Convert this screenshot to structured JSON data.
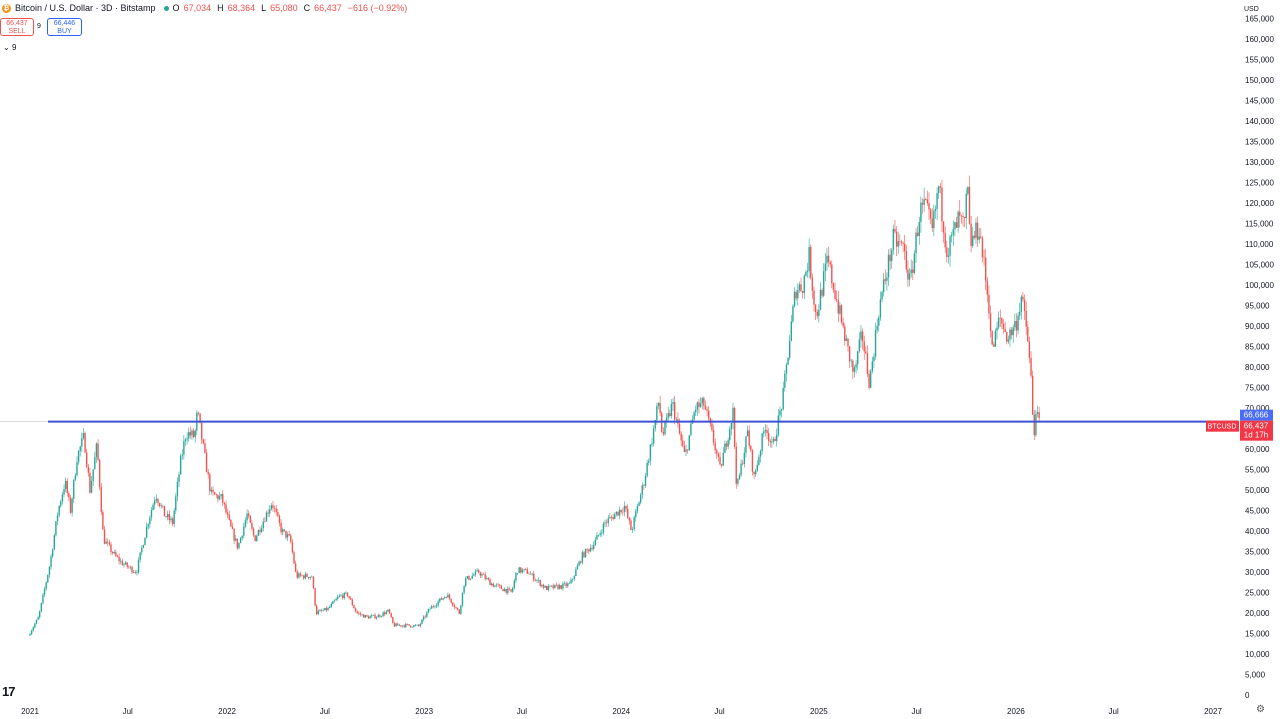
{
  "header": {
    "coin_icon": "bitcoin-icon",
    "title": "Bitcoin / U.S. Dollar · 3D · Bitstamp",
    "ohlc": [
      {
        "k": "O",
        "v": "67,034"
      },
      {
        "k": "H",
        "v": "68,364"
      },
      {
        "k": "L",
        "v": "65,080"
      },
      {
        "k": "C",
        "v": "66,437"
      }
    ],
    "change": "−616 (−0.92%)"
  },
  "trade": {
    "sell_price": "66,437",
    "sell_label": "SELL",
    "spread": "9",
    "buy_price": "66,446",
    "buy_label": "BUY"
  },
  "indicators_toggle": "9",
  "currency": "USD",
  "colors": {
    "up": "#26a69a",
    "down": "#ef5350",
    "hline": "#3f51d9",
    "current": "#f23645",
    "hline_label": "#4a6cf7"
  },
  "chart_data": {
    "type": "candlestick",
    "symbol": "BTCUSD",
    "interval": "3D",
    "x_ticks": [
      "2021",
      "Jul",
      "2022",
      "Jul",
      "2023",
      "Jul",
      "2024",
      "Jul",
      "2025",
      "Jul",
      "2026",
      "Jul",
      "2027"
    ],
    "y_ticks": [
      0,
      5000,
      10000,
      15000,
      20000,
      25000,
      30000,
      35000,
      40000,
      45000,
      50000,
      55000,
      60000,
      65000,
      70000,
      75000,
      80000,
      85000,
      90000,
      95000,
      100000,
      105000,
      110000,
      115000,
      120000,
      125000,
      130000,
      135000,
      140000,
      145000,
      150000,
      155000,
      160000,
      165000
    ],
    "ylim": [
      0,
      168000
    ],
    "xlim": [
      "2021-01-01",
      "2027-01-31"
    ],
    "horizontal_line": {
      "value": 66666,
      "label": "66,666"
    },
    "current_price": {
      "symbol": "BTCUSD",
      "value": "66,437",
      "countdown": "1d 17h"
    },
    "price_path": [
      [
        "2021-01-01",
        14500
      ],
      [
        "2021-01-20",
        19000
      ],
      [
        "2021-02-10",
        32000
      ],
      [
        "2021-02-25",
        45000
      ],
      [
        "2021-03-10",
        52000
      ],
      [
        "2021-03-20",
        45000
      ],
      [
        "2021-04-01",
        58000
      ],
      [
        "2021-04-14",
        63000
      ],
      [
        "2021-04-25",
        50000
      ],
      [
        "2021-05-08",
        61000
      ],
      [
        "2021-05-20",
        38000
      ],
      [
        "2021-06-10",
        34000
      ],
      [
        "2021-06-25",
        32000
      ],
      [
        "2021-07-20",
        30000
      ],
      [
        "2021-08-10",
        42000
      ],
      [
        "2021-08-25",
        49000
      ],
      [
        "2021-09-10",
        44000
      ],
      [
        "2021-09-25",
        42000
      ],
      [
        "2021-10-10",
        57000
      ],
      [
        "2021-10-20",
        64000
      ],
      [
        "2021-11-05",
        63000
      ],
      [
        "2021-11-10",
        69000
      ],
      [
        "2021-11-25",
        57000
      ],
      [
        "2021-12-05",
        49000
      ],
      [
        "2021-12-25",
        48000
      ],
      [
        "2022-01-10",
        41000
      ],
      [
        "2022-01-24",
        36000
      ],
      [
        "2022-02-10",
        44000
      ],
      [
        "2022-02-24",
        38000
      ],
      [
        "2022-03-28",
        47000
      ],
      [
        "2022-04-15",
        40000
      ],
      [
        "2022-05-01",
        38000
      ],
      [
        "2022-05-12",
        29000
      ],
      [
        "2022-06-10",
        29000
      ],
      [
        "2022-06-18",
        20000
      ],
      [
        "2022-07-10",
        21000
      ],
      [
        "2022-07-30",
        24000
      ],
      [
        "2022-08-15",
        24500
      ],
      [
        "2022-09-01",
        20000
      ],
      [
        "2022-09-20",
        19000
      ],
      [
        "2022-10-10",
        19200
      ],
      [
        "2022-10-30",
        20500
      ],
      [
        "2022-11-08",
        17000
      ],
      [
        "2022-12-01",
        17000
      ],
      [
        "2022-12-25",
        16800
      ],
      [
        "2023-01-14",
        21000
      ],
      [
        "2023-02-15",
        24500
      ],
      [
        "2023-03-10",
        20000
      ],
      [
        "2023-03-20",
        28000
      ],
      [
        "2023-04-15",
        30000
      ],
      [
        "2023-05-10",
        27000
      ],
      [
        "2023-06-15",
        25000
      ],
      [
        "2023-06-25",
        30500
      ],
      [
        "2023-07-15",
        30000
      ],
      [
        "2023-08-17",
        26000
      ],
      [
        "2023-09-15",
        26500
      ],
      [
        "2023-10-01",
        27000
      ],
      [
        "2023-10-24",
        34000
      ],
      [
        "2023-11-15",
        37000
      ],
      [
        "2023-12-05",
        42000
      ],
      [
        "2024-01-10",
        46000
      ],
      [
        "2024-01-23",
        40000
      ],
      [
        "2024-02-15",
        52000
      ],
      [
        "2024-02-28",
        61000
      ],
      [
        "2024-03-14",
        72000
      ],
      [
        "2024-03-20",
        63000
      ],
      [
        "2024-04-08",
        71000
      ],
      [
        "2024-04-20",
        64000
      ],
      [
        "2024-05-01",
        58000
      ],
      [
        "2024-05-20",
        70000
      ],
      [
        "2024-06-05",
        71000
      ],
      [
        "2024-06-25",
        61000
      ],
      [
        "2024-07-05",
        55000
      ],
      [
        "2024-07-29",
        69000
      ],
      [
        "2024-08-05",
        50000
      ],
      [
        "2024-08-25",
        64000
      ],
      [
        "2024-09-06",
        53000
      ],
      [
        "2024-09-27",
        66000
      ],
      [
        "2024-10-10",
        60000
      ],
      [
        "2024-10-29",
        72000
      ],
      [
        "2024-11-12",
        88000
      ],
      [
        "2024-11-22",
        99000
      ],
      [
        "2024-12-05",
        100000
      ],
      [
        "2024-12-17",
        107000
      ],
      [
        "2024-12-30",
        92000
      ],
      [
        "2025-01-20",
        106000
      ],
      [
        "2025-02-05",
        97000
      ],
      [
        "2025-02-25",
        85000
      ],
      [
        "2025-03-10",
        78000
      ],
      [
        "2025-03-25",
        88000
      ],
      [
        "2025-04-08",
        76000
      ],
      [
        "2025-04-25",
        94000
      ],
      [
        "2025-05-22",
        111000
      ],
      [
        "2025-06-10",
        109000
      ],
      [
        "2025-06-22",
        100000
      ],
      [
        "2025-07-10",
        118000
      ],
      [
        "2025-07-20",
        119000
      ],
      [
        "2025-08-02",
        113000
      ],
      [
        "2025-08-14",
        124000
      ],
      [
        "2025-08-30",
        108000
      ],
      [
        "2025-09-20",
        116000
      ],
      [
        "2025-10-01",
        114000
      ],
      [
        "2025-10-06",
        125000
      ],
      [
        "2025-10-11",
        110000
      ],
      [
        "2025-10-28",
        114000
      ],
      [
        "2025-11-15",
        95000
      ],
      [
        "2025-11-21",
        84000
      ],
      [
        "2025-12-05",
        92000
      ],
      [
        "2025-12-20",
        87000
      ],
      [
        "2026-01-05",
        91000
      ],
      [
        "2026-01-14",
        97000
      ],
      [
        "2026-01-25",
        88000
      ],
      [
        "2026-02-01",
        77000
      ],
      [
        "2026-02-06",
        62000
      ],
      [
        "2026-02-10",
        70000
      ],
      [
        "2026-02-14",
        66437
      ]
    ]
  }
}
